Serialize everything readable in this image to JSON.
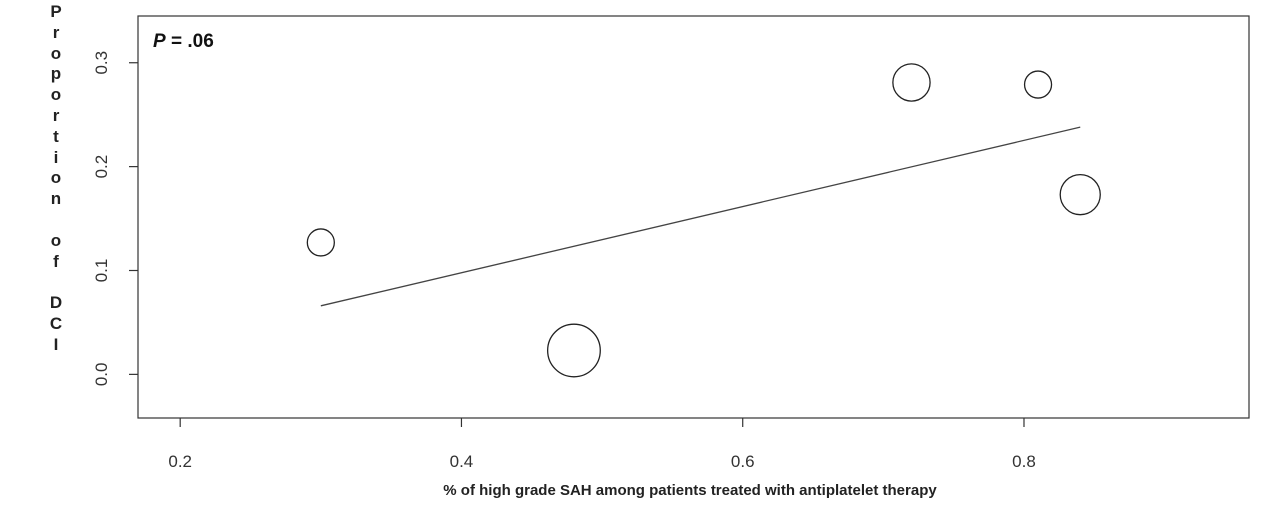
{
  "chart_data": {
    "type": "scatter",
    "title": "",
    "xlabel": "% of high grade SAH among patients treated with antiplatelet therapy",
    "ylabel": "Proportion of DCI",
    "xlim": [
      0.17,
      0.96
    ],
    "ylim": [
      -0.042,
      0.345
    ],
    "x_ticks": [
      "0.2",
      "0.4",
      "0.6",
      "0.8"
    ],
    "y_ticks": [
      "0.0",
      "0.1",
      "0.2",
      "0.3"
    ],
    "annotation": {
      "label": "P",
      "value": "= .06"
    },
    "points": [
      {
        "x": 0.3,
        "y": 0.127,
        "weight": 1.0
      },
      {
        "x": 0.48,
        "y": 0.023,
        "weight": 3.8
      },
      {
        "x": 0.72,
        "y": 0.281,
        "weight": 1.9
      },
      {
        "x": 0.81,
        "y": 0.279,
        "weight": 1.0
      },
      {
        "x": 0.84,
        "y": 0.173,
        "weight": 2.2
      }
    ],
    "trendline": {
      "x": [
        0.3,
        0.84
      ],
      "y": [
        0.066,
        0.238
      ]
    },
    "grid": false,
    "legend": "none"
  }
}
